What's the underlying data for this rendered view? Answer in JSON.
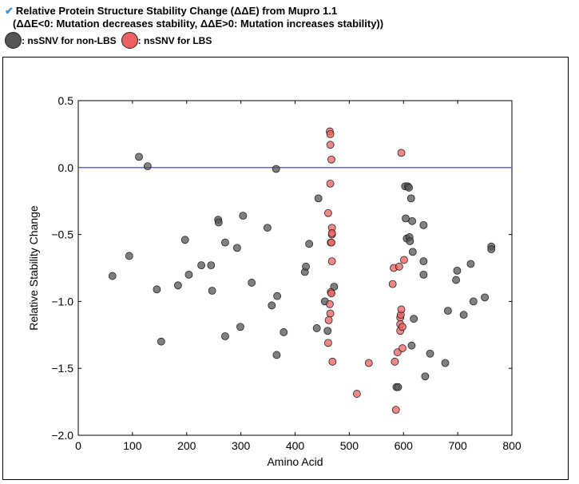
{
  "header": {
    "check_icon": "checkmark-icon",
    "title": "Relative Protein Structure Stability Change (ΔΔE) from Mupro 1.1",
    "subtitle": "(ΔΔE<0: Mutation decreases stability, ΔΔE>0: Mutation increases stability))",
    "legend": [
      {
        "label": ": nsSNV for non-LBS",
        "color": "#555555"
      },
      {
        "label": ": nsSNV for LBS",
        "color": "#f06060"
      }
    ]
  },
  "chart_data": {
    "type": "scatter",
    "xlabel": "Amino Acid",
    "ylabel": "Relative Stability Change",
    "xlim": [
      0,
      800
    ],
    "ylim": [
      -2.0,
      0.5
    ],
    "xticks": [
      0,
      100,
      200,
      300,
      400,
      500,
      600,
      700,
      800
    ],
    "yticks": [
      -2.0,
      -1.5,
      -1.0,
      -0.5,
      0.0,
      0.5
    ],
    "xtick_labels": [
      "0",
      "100",
      "200",
      "300",
      "400",
      "500",
      "600",
      "700",
      "800"
    ],
    "ytick_labels": [
      "−2.0",
      "−1.5",
      "−1.0",
      "−0.5",
      "0.0",
      "0.5"
    ],
    "reference_line": {
      "y": 0.0,
      "color": "#6666dd"
    },
    "grid": false,
    "series": [
      {
        "name": "nsSNV for non-LBS",
        "color": "#555555",
        "points": [
          [
            63,
            -0.81
          ],
          [
            94,
            -0.66
          ],
          [
            112,
            0.08
          ],
          [
            128,
            0.01
          ],
          [
            145,
            -0.91
          ],
          [
            153,
            -1.3
          ],
          [
            184,
            -0.88
          ],
          [
            197,
            -0.54
          ],
          [
            204,
            -0.8
          ],
          [
            227,
            -0.73
          ],
          [
            245,
            -0.73
          ],
          [
            247,
            -0.92
          ],
          [
            258,
            -0.39
          ],
          [
            259,
            -0.41
          ],
          [
            271,
            -0.56
          ],
          [
            271,
            -1.26
          ],
          [
            293,
            -0.6
          ],
          [
            299,
            -1.19
          ],
          [
            304,
            -0.36
          ],
          [
            320,
            -0.86
          ],
          [
            349,
            -0.45
          ],
          [
            357,
            -1.03
          ],
          [
            365,
            -0.01
          ],
          [
            366,
            -1.4
          ],
          [
            367,
            -0.96
          ],
          [
            379,
            -1.23
          ],
          [
            418,
            -0.78
          ],
          [
            420,
            -0.74
          ],
          [
            426,
            -0.57
          ],
          [
            440,
            -1.2
          ],
          [
            443,
            -0.23
          ],
          [
            455,
            -1.0
          ],
          [
            460,
            -1.22
          ],
          [
            472,
            -0.89
          ],
          [
            587,
            -1.64
          ],
          [
            590,
            -1.64
          ],
          [
            603,
            -0.14
          ],
          [
            604,
            -0.38
          ],
          [
            606,
            -0.53
          ],
          [
            608,
            -0.14
          ],
          [
            610,
            -0.15
          ],
          [
            611,
            -0.52
          ],
          [
            612,
            -0.55
          ],
          [
            614,
            -0.23
          ],
          [
            615,
            -1.33
          ],
          [
            616,
            -0.4
          ],
          [
            617,
            -0.63
          ],
          [
            619,
            -1.13
          ],
          [
            637,
            -0.43
          ],
          [
            637,
            -0.7
          ],
          [
            637,
            -0.8
          ],
          [
            640,
            -1.56
          ],
          [
            649,
            -1.39
          ],
          [
            677,
            -1.46
          ],
          [
            682,
            -1.07
          ],
          [
            697,
            -0.84
          ],
          [
            699,
            -0.77
          ],
          [
            711,
            -1.1
          ],
          [
            724,
            -0.72
          ],
          [
            729,
            -1.0
          ],
          [
            750,
            -0.97
          ],
          [
            762,
            -0.59
          ],
          [
            762,
            -0.61
          ]
        ]
      },
      {
        "name": "nsSNV for LBS",
        "color": "#f06060",
        "points": [
          [
            464,
            0.27
          ],
          [
            465,
            0.25
          ],
          [
            465,
            0.17
          ],
          [
            467,
            0.06
          ],
          [
            465,
            -0.12
          ],
          [
            461,
            -0.34
          ],
          [
            468,
            -0.45
          ],
          [
            468,
            -0.5
          ],
          [
            468,
            -0.49
          ],
          [
            466,
            -0.56
          ],
          [
            467,
            -0.56
          ],
          [
            468,
            -0.7
          ],
          [
            466,
            -0.93
          ],
          [
            467,
            -0.94
          ],
          [
            464,
            -1.02
          ],
          [
            465,
            -1.09
          ],
          [
            462,
            -1.14
          ],
          [
            461,
            -1.31
          ],
          [
            469,
            -1.45
          ],
          [
            514,
            -1.69
          ],
          [
            536,
            -1.46
          ],
          [
            580,
            -0.87
          ],
          [
            582,
            -0.75
          ],
          [
            584,
            -1.45
          ],
          [
            586,
            -1.81
          ],
          [
            589,
            -1.38
          ],
          [
            592,
            -0.74
          ],
          [
            594,
            -1.12
          ],
          [
            594,
            -1.22
          ],
          [
            594,
            -1.17
          ],
          [
            595,
            -1.1
          ],
          [
            596,
            -1.06
          ],
          [
            596,
            0.11
          ],
          [
            598,
            -1.19
          ],
          [
            598,
            -1.35
          ],
          [
            601,
            -0.69
          ]
        ]
      }
    ]
  }
}
